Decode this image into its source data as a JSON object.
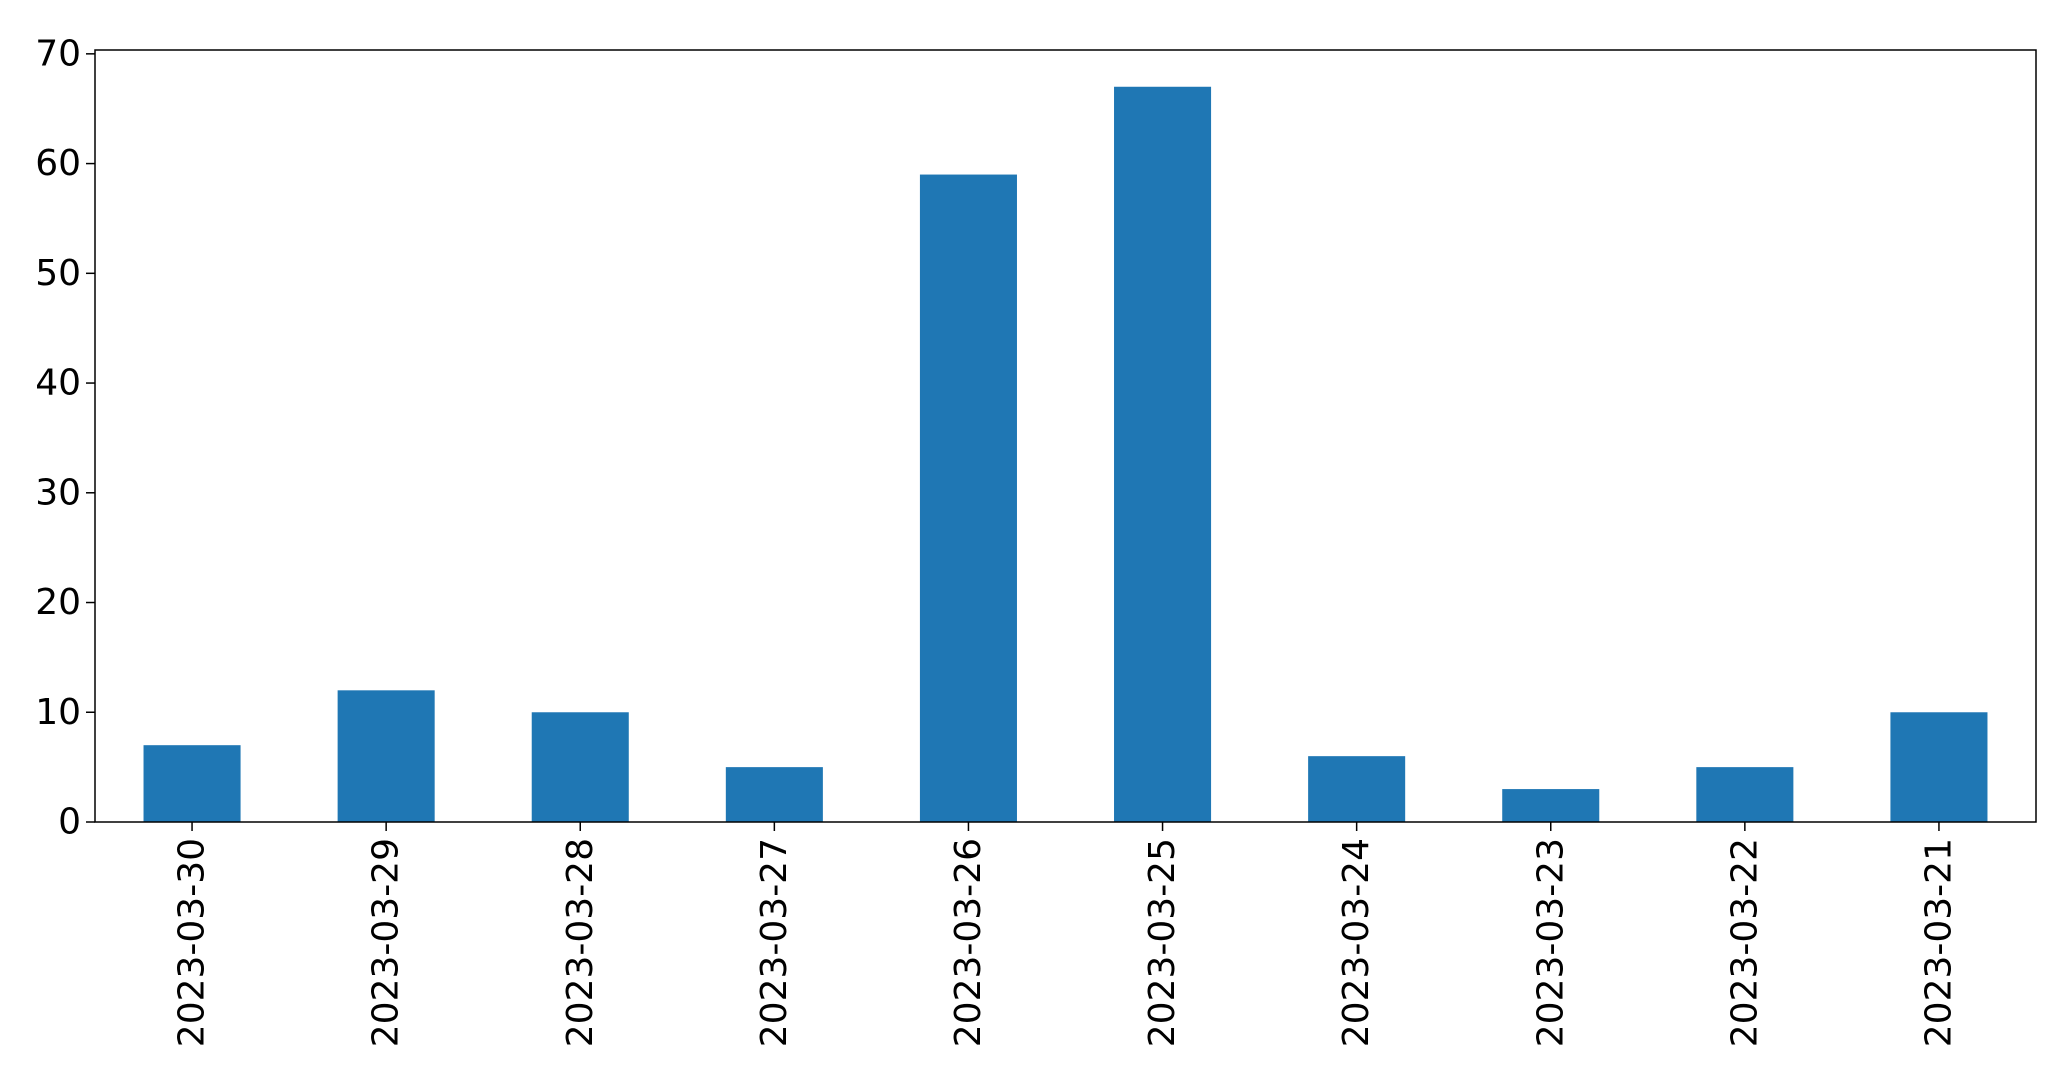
{
  "chart_data": {
    "type": "bar",
    "title": "",
    "xlabel": "",
    "ylabel": "",
    "categories": [
      "2023-03-30",
      "2023-03-29",
      "2023-03-28",
      "2023-03-27",
      "2023-03-26",
      "2023-03-25",
      "2023-03-24",
      "2023-03-23",
      "2023-03-22",
      "2023-03-21"
    ],
    "values": [
      7,
      12,
      10,
      5,
      59,
      67,
      6,
      3,
      5,
      10
    ],
    "ylim": [
      0,
      70.35
    ],
    "yticks": [
      0,
      10,
      20,
      30,
      40,
      50,
      60,
      70
    ],
    "bar_color": "#1f77b4",
    "grid": false,
    "legend": "none"
  }
}
